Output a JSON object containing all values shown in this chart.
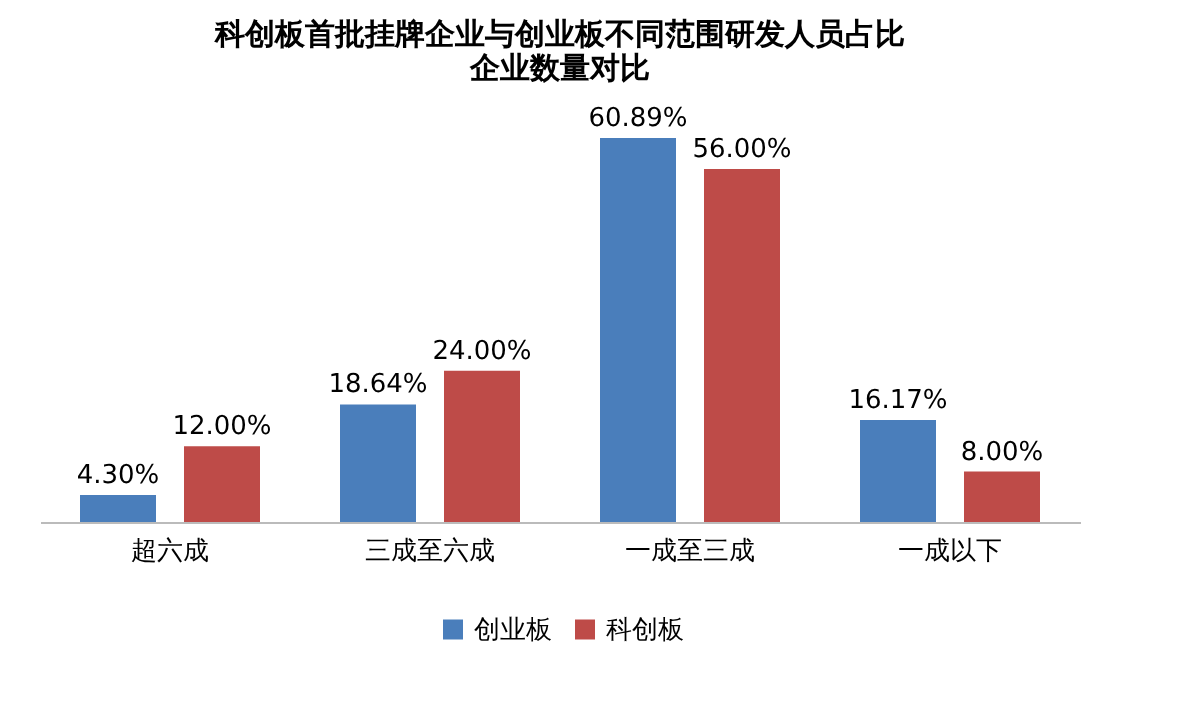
{
  "chart_data": {
    "type": "bar",
    "title": "科创板首批挂牌企业与创业板不同范围研发人员占比企业数量对比",
    "categories": [
      "超六成",
      "三成至六成",
      "一成至三成",
      "一成以下"
    ],
    "series": [
      {
        "name": "创业板",
        "color": "#4a7ebb",
        "values": [
          4.3,
          18.64,
          60.89,
          16.17
        ],
        "value_labels": [
          "4.30%",
          "18.64%",
          "60.89%",
          "16.17%"
        ]
      },
      {
        "name": "科创板",
        "color": "#be4b48",
        "values": [
          12.0,
          24.0,
          56.0,
          8.0
        ],
        "value_labels": [
          "12.00%",
          "24.00%",
          "56.00%",
          "8.00%"
        ]
      }
    ],
    "legend": "bottom",
    "grid": false,
    "tick_labels": "x"
  }
}
